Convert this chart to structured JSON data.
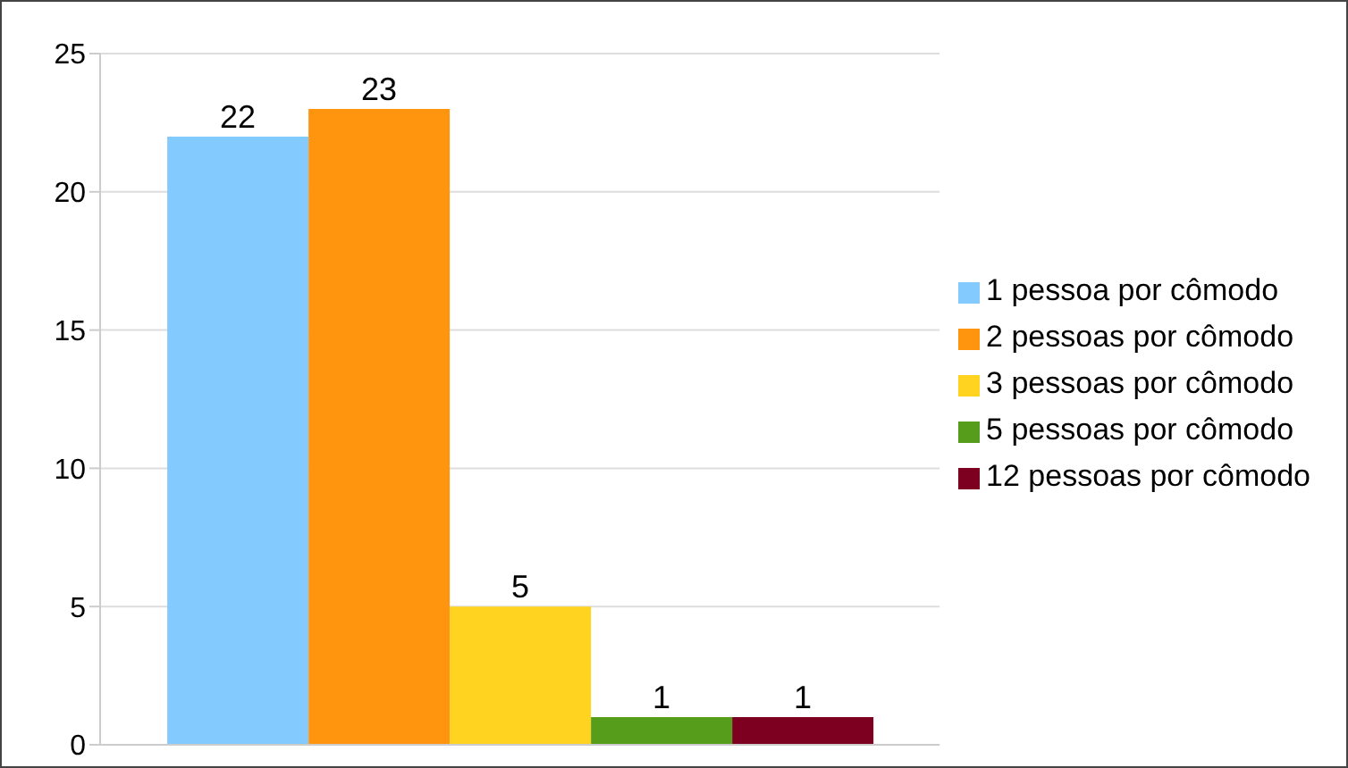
{
  "chart_data": {
    "type": "bar",
    "categories": [
      null
    ],
    "series": [
      {
        "name": "1 pessoa por cômodo",
        "color": "#83caff",
        "values": [
          22
        ]
      },
      {
        "name": "2 pessoas por cômodo",
        "color": "#ff950e",
        "values": [
          23
        ]
      },
      {
        "name": "3 pessoas por cômodo",
        "color": "#ffd320",
        "values": [
          5
        ]
      },
      {
        "name": "5 pessoas por cômodo",
        "color": "#579d1c",
        "values": [
          1
        ]
      },
      {
        "name": "12 pessoas por cômodo",
        "color": "#7e0021",
        "values": [
          1
        ]
      }
    ],
    "ylim": [
      0,
      25
    ],
    "yticks": [
      0,
      5,
      10,
      15,
      20,
      25
    ],
    "grid": "y",
    "legend": "right",
    "data_labels": true
  }
}
